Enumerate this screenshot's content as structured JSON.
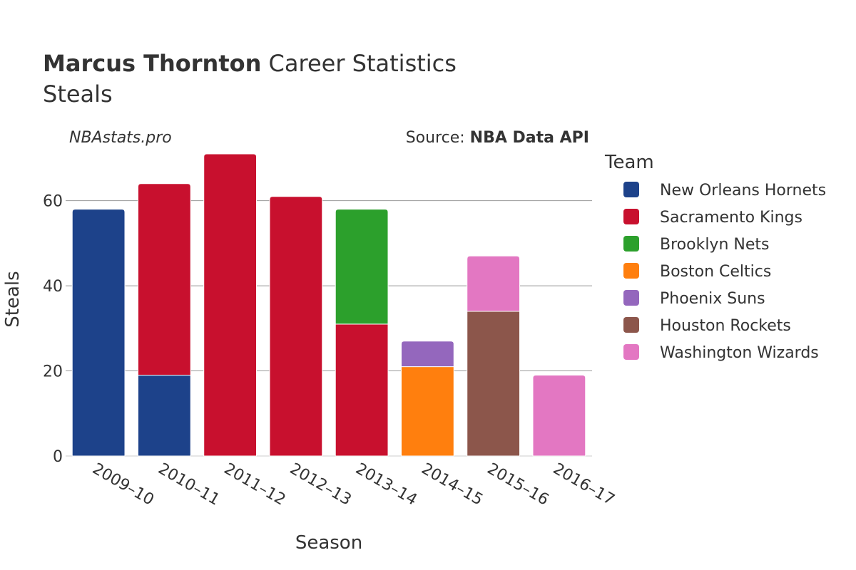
{
  "header": {
    "title_bold": "Marcus Thornton",
    "title_rest": " Career Statistics",
    "subtitle": "Steals",
    "watermark": "NBAstats.pro",
    "source_prefix": "Source: ",
    "source_bold": "NBA Data API"
  },
  "legend": {
    "title": "Team",
    "items": [
      {
        "name": "New Orleans Hornets",
        "color": "#1d428a"
      },
      {
        "name": "Sacramento Kings",
        "color": "#c8102e"
      },
      {
        "name": "Brooklyn Nets",
        "color": "#2ca02c"
      },
      {
        "name": "Boston Celtics",
        "color": "#ff7f0e"
      },
      {
        "name": "Phoenix Suns",
        "color": "#9467bd"
      },
      {
        "name": "Houston Rockets",
        "color": "#8c564b"
      },
      {
        "name": "Washington Wizards",
        "color": "#e377c2"
      }
    ]
  },
  "chart_data": {
    "type": "bar",
    "stacked": true,
    "xlabel": "Season",
    "ylabel": "Steals",
    "ylim": [
      0,
      72
    ],
    "yticks": [
      0,
      20,
      40,
      60
    ],
    "categories": [
      "2009–10",
      "2010–11",
      "2011–12",
      "2012–13",
      "2013–14",
      "2014–15",
      "2015–16",
      "2016–17"
    ],
    "series": [
      {
        "name": "New Orleans Hornets",
        "color": "#1d428a",
        "values": [
          58,
          19,
          0,
          0,
          0,
          0,
          0,
          0
        ]
      },
      {
        "name": "Sacramento Kings",
        "color": "#c8102e",
        "values": [
          0,
          45,
          71,
          61,
          31,
          0,
          0,
          0
        ]
      },
      {
        "name": "Brooklyn Nets",
        "color": "#2ca02c",
        "values": [
          0,
          0,
          0,
          0,
          27,
          0,
          0,
          0
        ]
      },
      {
        "name": "Boston Celtics",
        "color": "#ff7f0e",
        "values": [
          0,
          0,
          0,
          0,
          0,
          21,
          0,
          0
        ]
      },
      {
        "name": "Phoenix Suns",
        "color": "#9467bd",
        "values": [
          0,
          0,
          0,
          0,
          0,
          6,
          0,
          0
        ]
      },
      {
        "name": "Houston Rockets",
        "color": "#8c564b",
        "values": [
          0,
          0,
          0,
          0,
          0,
          0,
          34,
          0
        ]
      },
      {
        "name": "Washington Wizards",
        "color": "#e377c2",
        "values": [
          0,
          0,
          0,
          0,
          0,
          0,
          13,
          19
        ]
      }
    ],
    "grid": true,
    "legend_position": "right"
  }
}
